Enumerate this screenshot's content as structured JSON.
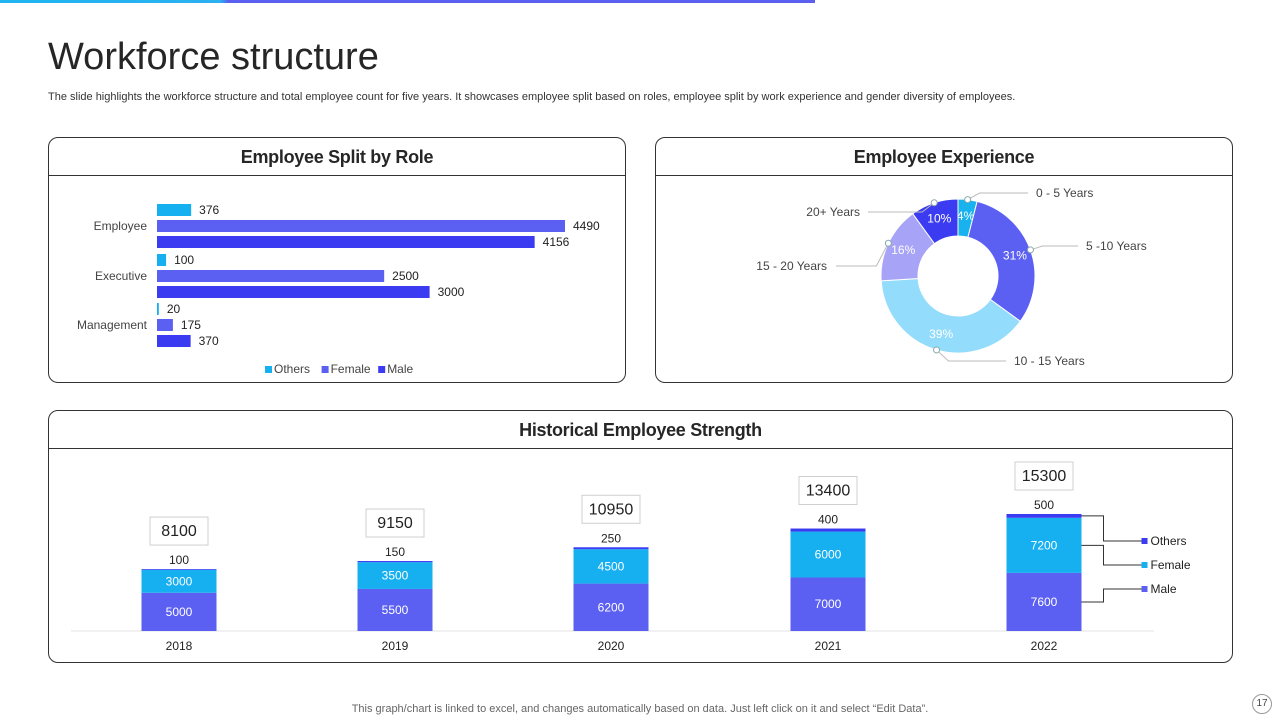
{
  "header": {
    "title": "Workforce structure",
    "subtitle": "The slide highlights the workforce structure and total employee count for five years. It showcases employee split based on roles, employee split by work experience and gender diversity of employees."
  },
  "footer": {
    "note": "This graph/chart is linked to excel,  and changes automatically based on data. Just left click on it and select “Edit Data”.",
    "page_number": "17"
  },
  "colors": {
    "others": "#16aff0",
    "female": "#5b5ff2",
    "male": "#3b3bf2",
    "exp_0_5": "#18b2ef",
    "exp_5_10": "#5b5ff2",
    "exp_10_15": "#93dcfb",
    "exp_15_20": "#a7a3f6",
    "exp_20": "#3b3bf2"
  },
  "chart_data": [
    {
      "id": "role",
      "type": "bar",
      "orientation": "horizontal",
      "title": "Employee Split by Role",
      "categories": [
        "Employee",
        "Executive",
        "Management"
      ],
      "series": [
        {
          "name": "Others",
          "values": [
            376,
            100,
            20
          ]
        },
        {
          "name": "Female",
          "values": [
            4490,
            2500,
            175
          ]
        },
        {
          "name": "Male",
          "values": [
            4156,
            3000,
            370
          ]
        }
      ],
      "xlim": [
        0,
        5000
      ],
      "legend": "bottom"
    },
    {
      "id": "experience",
      "type": "pie",
      "title": "Employee Experience",
      "labels": [
        "0 - 5 Years",
        "5 -10 Years",
        "10 - 15 Years",
        "15 - 20 Years",
        "20+ Years"
      ],
      "values": [
        4,
        31,
        39,
        16,
        10
      ],
      "value_labels": [
        "4%",
        "31%",
        "39%",
        "16%",
        "10%"
      ],
      "donut": true
    },
    {
      "id": "history",
      "type": "bar",
      "stacked": true,
      "title": "Historical Employee Strength",
      "categories": [
        "2018",
        "2019",
        "2020",
        "2021",
        "2022"
      ],
      "series": [
        {
          "name": "Male",
          "values": [
            5000,
            5500,
            6200,
            7000,
            7600
          ]
        },
        {
          "name": "Female",
          "values": [
            3000,
            3500,
            4500,
            6000,
            7200
          ]
        },
        {
          "name": "Others",
          "values": [
            100,
            150,
            250,
            400,
            500
          ]
        }
      ],
      "totals": [
        8100,
        9150,
        10950,
        13400,
        15300
      ],
      "legend_labels": [
        "Others",
        "Female",
        "Male"
      ],
      "ylim": [
        0,
        16000
      ],
      "legend": "right"
    }
  ]
}
